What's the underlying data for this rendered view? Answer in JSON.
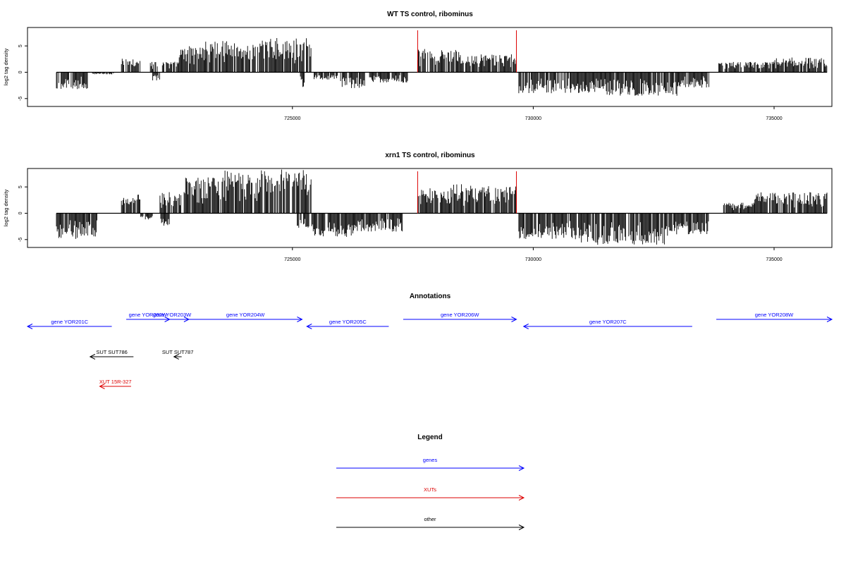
{
  "chart_data": [
    {
      "type": "bar",
      "title": "WT TS control, ribominus",
      "ylabel": "log2 tag density",
      "xlim": [
        719500,
        736200
      ],
      "ylim": [
        -6.5,
        8.5
      ],
      "xticks": [
        725000,
        730000,
        735000
      ],
      "yticks": [
        5,
        0,
        -5
      ],
      "ytick_labels": [
        "5",
        "0",
        "-5"
      ],
      "markers": [
        727600,
        729650
      ],
      "marker_color": "#dd0000",
      "bar_color": "#000000",
      "seed": 7,
      "regions": [
        {
          "start": 720100,
          "end": 720750,
          "strand": "-",
          "max": 3.2
        },
        {
          "start": 720850,
          "end": 721300,
          "strand": "-",
          "max": 0.4
        },
        {
          "start": 721450,
          "end": 721850,
          "strand": "+",
          "max": 2.8
        },
        {
          "start": 722050,
          "end": 722200,
          "strand": "+",
          "max": 2.0
        },
        {
          "start": 722100,
          "end": 722250,
          "strand": "-",
          "max": 1.6
        },
        {
          "start": 722300,
          "end": 722650,
          "strand": "+",
          "max": 2.0
        },
        {
          "start": 722650,
          "end": 723200,
          "strand": "+",
          "max": 5.0
        },
        {
          "start": 723200,
          "end": 724500,
          "strand": "+",
          "max": 6.0
        },
        {
          "start": 724500,
          "end": 725400,
          "strand": "+",
          "max": 6.5
        },
        {
          "start": 725150,
          "end": 725250,
          "strand": "-",
          "max": 2.8
        },
        {
          "start": 725450,
          "end": 725950,
          "strand": "-",
          "max": 1.4
        },
        {
          "start": 726000,
          "end": 726500,
          "strand": "-",
          "max": 3.0
        },
        {
          "start": 726600,
          "end": 727400,
          "strand": "-",
          "max": 2.0
        },
        {
          "start": 727600,
          "end": 728500,
          "strand": "+",
          "max": 4.5
        },
        {
          "start": 728500,
          "end": 729650,
          "strand": "+",
          "max": 3.4
        },
        {
          "start": 729700,
          "end": 731500,
          "strand": "-",
          "max": 4.0
        },
        {
          "start": 731500,
          "end": 733000,
          "strand": "-",
          "max": 4.5
        },
        {
          "start": 733000,
          "end": 733650,
          "strand": "-",
          "max": 3.0
        },
        {
          "start": 733850,
          "end": 735000,
          "strand": "+",
          "max": 2.0
        },
        {
          "start": 735000,
          "end": 736100,
          "strand": "+",
          "max": 2.8
        }
      ]
    },
    {
      "type": "bar",
      "title": "xrn1 TS control, ribominus",
      "ylabel": "log2 tag density",
      "xlim": [
        719500,
        736200
      ],
      "ylim": [
        -6.5,
        8.5
      ],
      "xticks": [
        725000,
        730000,
        735000
      ],
      "yticks": [
        5,
        0,
        -5
      ],
      "ytick_labels": [
        "5",
        "0",
        "-5"
      ],
      "markers": [
        727600,
        729650
      ],
      "marker_color": "#dd0000",
      "bar_color": "#000000",
      "seed": 21,
      "regions": [
        {
          "start": 720100,
          "end": 720700,
          "strand": "-",
          "max": 5.0
        },
        {
          "start": 720700,
          "end": 720950,
          "strand": "-",
          "max": 4.5
        },
        {
          "start": 721450,
          "end": 721850,
          "strand": "+",
          "max": 3.6
        },
        {
          "start": 721850,
          "end": 722100,
          "strand": "-",
          "max": 1.2
        },
        {
          "start": 722250,
          "end": 722700,
          "strand": "+",
          "max": 4.0
        },
        {
          "start": 722250,
          "end": 722450,
          "strand": "-",
          "max": 2.5
        },
        {
          "start": 722750,
          "end": 723600,
          "strand": "+",
          "max": 6.8
        },
        {
          "start": 723600,
          "end": 725400,
          "strand": "+",
          "max": 8.4
        },
        {
          "start": 725100,
          "end": 725350,
          "strand": "-",
          "max": 2.8
        },
        {
          "start": 725400,
          "end": 726300,
          "strand": "-",
          "max": 4.5
        },
        {
          "start": 726300,
          "end": 727300,
          "strand": "-",
          "max": 3.5
        },
        {
          "start": 727600,
          "end": 728300,
          "strand": "+",
          "max": 4.8
        },
        {
          "start": 728300,
          "end": 729650,
          "strand": "+",
          "max": 5.5
        },
        {
          "start": 729700,
          "end": 731000,
          "strand": "-",
          "max": 5.0
        },
        {
          "start": 731000,
          "end": 732800,
          "strand": "-",
          "max": 6.0
        },
        {
          "start": 732800,
          "end": 733650,
          "strand": "-",
          "max": 4.0
        },
        {
          "start": 733950,
          "end": 734600,
          "strand": "+",
          "max": 2.0
        },
        {
          "start": 734600,
          "end": 736100,
          "strand": "+",
          "max": 4.0
        }
      ]
    }
  ],
  "annotations": {
    "title": "Annotations",
    "colors": {
      "gene": "#0000ff",
      "xut": "#dd0000",
      "other": "#000000"
    },
    "features": [
      {
        "label": "gene YOR201C",
        "start": 719500,
        "end": 721250,
        "strand": "-",
        "type": "gene",
        "row": 1
      },
      {
        "label": "gene YOR202W",
        "start": 721550,
        "end": 722450,
        "strand": "+",
        "type": "gene",
        "row": 0
      },
      {
        "label": "gene YOR203W",
        "start": 722150,
        "end": 722850,
        "strand": "+",
        "type": "gene",
        "row": 0
      },
      {
        "label": "gene YOR204W",
        "start": 722850,
        "end": 725200,
        "strand": "+",
        "type": "gene",
        "row": 0
      },
      {
        "label": "gene YOR205C",
        "start": 725300,
        "end": 727000,
        "strand": "-",
        "type": "gene",
        "row": 1
      },
      {
        "label": "gene YOR206W",
        "start": 727300,
        "end": 729650,
        "strand": "+",
        "type": "gene",
        "row": 0
      },
      {
        "label": "gene YOR207C",
        "start": 729800,
        "end": 733300,
        "strand": "-",
        "type": "gene",
        "row": 1
      },
      {
        "label": "gene YOR208W",
        "start": 733800,
        "end": 736200,
        "strand": "+",
        "type": "gene",
        "row": 0
      },
      {
        "label": "SUT SUT786",
        "start": 720800,
        "end": 721700,
        "strand": "-",
        "type": "other",
        "row": 2
      },
      {
        "label": "SUT SUT787",
        "start": 722540,
        "end": 722700,
        "strand": "-",
        "type": "other",
        "row": 2
      },
      {
        "label": "XUT 15R-327",
        "start": 721000,
        "end": 721650,
        "strand": "-",
        "type": "xut",
        "row": 3
      }
    ]
  },
  "legend": {
    "title": "Legend",
    "items": [
      {
        "label": "genes",
        "color": "#0000ff"
      },
      {
        "label": "XUTs",
        "color": "#dd0000"
      },
      {
        "label": "other",
        "color": "#000000"
      }
    ]
  }
}
